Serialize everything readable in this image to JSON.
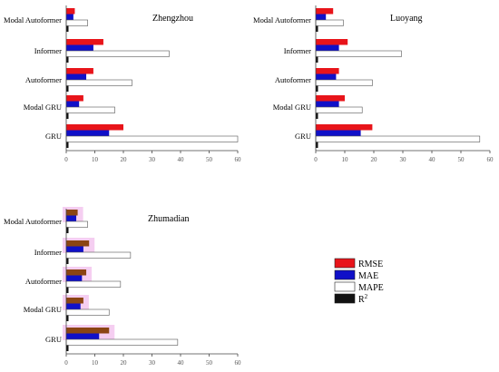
{
  "colors": {
    "rmse": "#e8141a",
    "mae": "#1010c8",
    "mape": "#ffffff",
    "r2": "#111111",
    "rmse_zhumadian": "#8b4513",
    "axis": "#444444",
    "outline": "#333333"
  },
  "legend": {
    "items": [
      "RMSE",
      "MAE",
      "MAPE",
      "R"
    ],
    "r2_sup": "2"
  },
  "chart_data": [
    {
      "type": "bar",
      "orientation": "horizontal",
      "title": "Zhengzhou",
      "categories": [
        "GRU",
        "Modal GRU",
        "Autoformer",
        "Informer",
        "Modal Autoformer"
      ],
      "xlim": [
        0,
        60
      ],
      "xticks": [
        "0",
        "10",
        "20",
        "30",
        "40",
        "50",
        "60"
      ],
      "series": [
        {
          "name": "RMSE",
          "values": [
            20,
            6,
            9.5,
            13,
            3
          ]
        },
        {
          "name": "MAE",
          "values": [
            15,
            4.5,
            7,
            9.5,
            2.5
          ]
        },
        {
          "name": "MAPE",
          "values": [
            60,
            17,
            23,
            36,
            7.5
          ]
        },
        {
          "name": "R2",
          "values": [
            0.9,
            0.9,
            0.9,
            0.9,
            0.9
          ]
        }
      ]
    },
    {
      "type": "bar",
      "orientation": "horizontal",
      "title": "Luoyang",
      "categories": [
        "GRU",
        "Modal GRU",
        "Autoformer",
        "Informer",
        "Modal Autoformer"
      ],
      "xlim": [
        0,
        60
      ],
      "xticks": [
        "0",
        "10",
        "20",
        "30",
        "40",
        "50",
        "60"
      ],
      "series": [
        {
          "name": "RMSE",
          "values": [
            19.5,
            10,
            8,
            11,
            6
          ]
        },
        {
          "name": "MAE",
          "values": [
            15.5,
            8,
            7,
            8,
            3.5
          ]
        },
        {
          "name": "MAPE",
          "values": [
            56.5,
            16,
            19.5,
            29.5,
            9.5
          ]
        },
        {
          "name": "R2",
          "values": [
            0.9,
            0.9,
            0.9,
            0.9,
            0.9
          ]
        }
      ]
    },
    {
      "type": "bar",
      "orientation": "horizontal",
      "title": "Zhumadian",
      "categories": [
        "GRU",
        "Modal GRU",
        "Autoformer",
        "Informer",
        "Modal Autoformer"
      ],
      "xlim": [
        0,
        60
      ],
      "xticks": [
        "0",
        "10",
        "20",
        "30",
        "40",
        "50",
        "60"
      ],
      "series": [
        {
          "name": "RMSE",
          "values": [
            15,
            6,
            7,
            8,
            4
          ]
        },
        {
          "name": "MAE",
          "values": [
            11.5,
            5,
            5.5,
            6,
            3.5
          ]
        },
        {
          "name": "MAPE",
          "values": [
            39,
            15,
            19,
            22.5,
            7.5
          ]
        },
        {
          "name": "R2",
          "values": [
            0.9,
            0.9,
            0.9,
            0.9,
            0.9
          ]
        }
      ]
    }
  ]
}
